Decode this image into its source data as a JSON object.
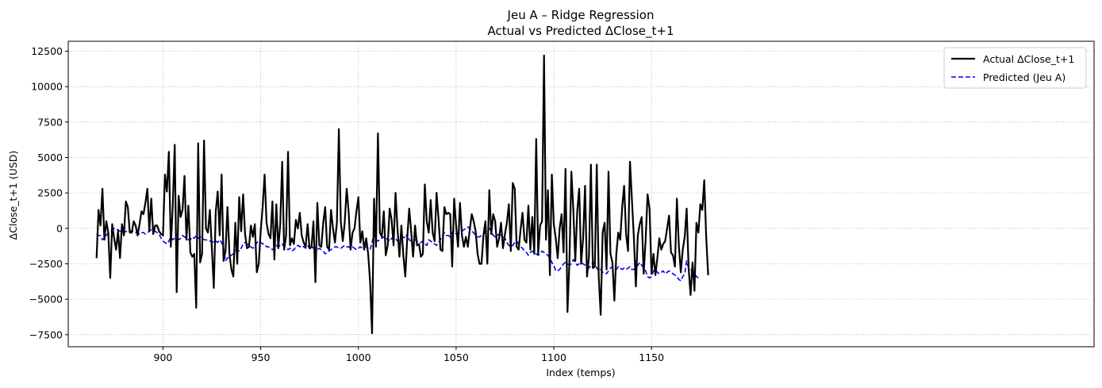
{
  "chart_data": {
    "type": "line",
    "title": "Jeu A – Ridge Regression",
    "subtitle": "Actual vs Predicted ΔClose_t+1",
    "xlabel": "Index (temps)",
    "ylabel": "ΔClose_t+1 (USD)",
    "xlim": [
      851.5,
      1376.5
    ],
    "ylim": [
      -8350,
      13200
    ],
    "x_ticks": [
      900,
      950,
      1000,
      1050,
      1100,
      1150
    ],
    "y_ticks": [
      -7500,
      -5000,
      -2500,
      0,
      2500,
      5000,
      7500,
      10000,
      12500
    ],
    "x_tick_labels": [
      "900",
      "950",
      "1000",
      "1050",
      "1100",
      "1150"
    ],
    "y_tick_labels": [
      "−7500",
      "−5000",
      "−2500",
      "0",
      "2500",
      "5000",
      "7500",
      "10000",
      "12500"
    ],
    "grid": true,
    "legend_position": "top-right",
    "x_start": 866,
    "x_step": 1,
    "series": [
      {
        "name": "Actual ΔClose_t+1",
        "color": "#000000",
        "style": "solid",
        "values": [
          -2100,
          1300,
          200,
          2800,
          -800,
          500,
          -300,
          -3500,
          300,
          -700,
          -1500,
          -200,
          -2100,
          300,
          -500,
          1900,
          1500,
          -300,
          -300,
          500,
          200,
          -500,
          300,
          1200,
          1000,
          1800,
          2800,
          -200,
          2100,
          -400,
          200,
          200,
          -200,
          -400,
          -500,
          3800,
          2600,
          5400,
          -1300,
          1600,
          5900,
          -4500,
          2300,
          800,
          1300,
          3700,
          -800,
          1600,
          -1700,
          -2000,
          -1800,
          -5600,
          6000,
          -2400,
          -1800,
          6200,
          0,
          -300,
          1300,
          -1400,
          -4200,
          1200,
          2600,
          -500,
          3800,
          -2300,
          -1600,
          1500,
          -1800,
          -2900,
          -3400,
          400,
          -2500,
          2200,
          -200,
          2400,
          -400,
          -1400,
          -1300,
          200,
          -600,
          300,
          -3100,
          -2500,
          -200,
          1500,
          3800,
          400,
          -400,
          -700,
          1900,
          -2200,
          1700,
          -1400,
          300,
          4700,
          -1500,
          -500,
          5400,
          -1200,
          -700,
          -1100,
          600,
          0,
          1100,
          -500,
          -1000,
          -1300,
          300,
          -1400,
          -1300,
          500,
          -3800,
          1800,
          -1200,
          -1300,
          400,
          1500,
          -1300,
          -1500,
          1300,
          0,
          -1000,
          400,
          7000,
          500,
          -900,
          400,
          2800,
          1200,
          -1500,
          -300,
          0,
          1200,
          2200,
          -1000,
          -200,
          -1500,
          -700,
          -1800,
          -3800,
          -7400,
          2100,
          -1300,
          6700,
          -300,
          -600,
          1200,
          -1900,
          -1200,
          1400,
          600,
          -1200,
          2500,
          0,
          -2000,
          200,
          -1900,
          -3400,
          -700,
          1400,
          -200,
          -2000,
          200,
          -1200,
          -1100,
          -2000,
          -1800,
          3100,
          500,
          -300,
          2000,
          -300,
          -900,
          2500,
          700,
          -1500,
          -1600,
          1500,
          1000,
          1100,
          1000,
          -2700,
          2100,
          200,
          -1300,
          1800,
          -500,
          -1300,
          -600,
          -1300,
          -100,
          1000,
          500,
          -200,
          -1800,
          -2500,
          -2500,
          -500,
          500,
          -2500,
          2700,
          -400,
          1000,
          500,
          -1300,
          -700,
          400,
          -1400,
          -400,
          400,
          1700,
          -1600,
          3200,
          2800,
          -1300,
          -1500,
          -100,
          1100,
          -800,
          -1000,
          1600,
          -1500,
          800,
          -1800,
          6300,
          -1800,
          200,
          500,
          12200,
          -800,
          2700,
          -3300,
          3800,
          300,
          -700,
          -2100,
          0,
          1000,
          -1700,
          4200,
          -5900,
          -2400,
          4000,
          1300,
          -2300,
          1200,
          2800,
          -2500,
          -700,
          3000,
          -3400,
          -2000,
          4500,
          -2800,
          -2700,
          4500,
          -3400,
          -6100,
          -300,
          400,
          -2900,
          4000,
          -1800,
          -2400,
          -5100,
          -1800,
          -300,
          -800,
          1500,
          3000,
          -400,
          -1600,
          4700,
          2000,
          -700,
          -4100,
          -500,
          300,
          800,
          -3200,
          -800,
          2400,
          1400,
          -3200,
          -1800,
          -3300,
          -2100,
          -700,
          -1500,
          -1100,
          -900,
          0,
          900,
          -1700,
          -1900,
          -2700,
          2100,
          -1200,
          -3100,
          -1500,
          -600,
          1400,
          -2800,
          -4700,
          -2400,
          -4400,
          400,
          -300,
          1700,
          1300,
          3400,
          -600,
          -3300
        ]
      },
      {
        "name": "Predicted (Jeu A)",
        "color": "#0000ee",
        "style": "dashed",
        "values": [
          -400,
          -500,
          -500,
          -800,
          -700,
          -500,
          -300,
          -200,
          -100,
          0,
          -100,
          -100,
          -200,
          -200,
          -300,
          -200,
          -300,
          -200,
          -200,
          -200,
          -300,
          -300,
          -400,
          -300,
          -300,
          -400,
          -300,
          -200,
          -100,
          -200,
          -200,
          -300,
          -400,
          -700,
          -900,
          -1000,
          -1100,
          -900,
          -600,
          -800,
          -700,
          -700,
          -800,
          -700,
          -500,
          -600,
          -700,
          -800,
          -800,
          -600,
          -700,
          -500,
          -700,
          -600,
          -700,
          -800,
          -800,
          -900,
          -900,
          -900,
          -1000,
          -900,
          -1000,
          -800,
          -1000,
          -1400,
          -2300,
          -2100,
          -2000,
          -1900,
          -1800,
          -1600,
          -1500,
          -1600,
          -1400,
          -1100,
          -1000,
          -1100,
          -1200,
          -1300,
          -1400,
          -1300,
          -1000,
          -900,
          -1000,
          -1100,
          -1100,
          -1300,
          -1300,
          -1400,
          -1500,
          -1400,
          -1200,
          -1300,
          -1200,
          -1100,
          -1300,
          -1400,
          -1500,
          -1400,
          -1600,
          -1500,
          -1300,
          -1200,
          -1300,
          -1200,
          -1300,
          -1400,
          -1200,
          -1400,
          -1500,
          -1300,
          -1400,
          -1500,
          -1400,
          -1500,
          -1600,
          -1800,
          -1700,
          -1600,
          -1500,
          -1400,
          -1300,
          -1300,
          -1400,
          -1400,
          -1300,
          -1200,
          -1300,
          -1300,
          -1400,
          -1300,
          -1400,
          -1500,
          -1400,
          -1300,
          -1400,
          -1300,
          -1300,
          -1400,
          -1500,
          -1000,
          -400,
          -800,
          -900,
          -800,
          -700,
          -600,
          -800,
          -700,
          -900,
          -700,
          -800,
          -700,
          -900,
          -800,
          -700,
          -600,
          -700,
          -400,
          -800,
          -900,
          -800,
          -800,
          -900,
          -1000,
          -1000,
          -900,
          -1100,
          -1200,
          -800,
          -900,
          -1000,
          -1100,
          -1200,
          -1000,
          -800,
          -500,
          -300,
          -500,
          -500,
          -600,
          -300,
          -200,
          -400,
          -400,
          -300,
          -200,
          -100,
          0,
          100,
          0,
          -200,
          -300,
          -500,
          -600,
          -600,
          -500,
          -400,
          -300,
          -100,
          0,
          -200,
          -500,
          -600,
          -500,
          -400,
          -500,
          -600,
          -700,
          -1000,
          -1200,
          -1300,
          -1200,
          -1000,
          -900,
          -1100,
          -1300,
          -1400,
          -1600,
          -1700,
          -1900,
          -1700,
          -1600,
          -1700,
          -1800,
          -1900,
          -1800,
          -1600,
          -1700,
          -1800,
          -1900,
          -2100,
          -2400,
          -2600,
          -3000,
          -3000,
          -2900,
          -2700,
          -2500,
          -2400,
          -2500,
          -2600,
          -2500,
          -2200,
          -2400,
          -2600,
          -2500,
          -2400,
          -2500,
          -2600,
          -2700,
          -2800,
          -2600,
          -2400,
          -2500,
          -2800,
          -3000,
          -2900,
          -3100,
          -3100,
          -3200,
          -3000,
          -2800,
          -2700,
          -2800,
          -2900,
          -2700,
          -2800,
          -2900,
          -2800,
          -2900,
          -2800,
          -2700,
          -2900,
          -2900,
          -2800,
          -2600,
          -2400,
          -2600,
          -2800,
          -3000,
          -3400,
          -3500,
          -3400,
          -3000,
          -2900,
          -3100,
          -3200,
          -3100,
          -3000,
          -3200,
          -3100,
          -3000,
          -3100,
          -3200,
          -3300,
          -3400,
          -3600,
          -3700,
          -3400,
          -3200,
          -2300,
          -2800,
          -2900,
          -3000,
          -3200,
          -3400,
          -3500
        ]
      }
    ]
  }
}
